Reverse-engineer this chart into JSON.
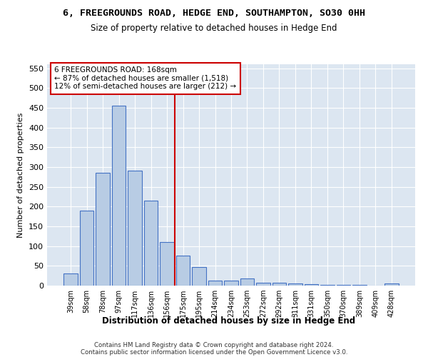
{
  "title": "6, FREEGROUNDS ROAD, HEDGE END, SOUTHAMPTON, SO30 0HH",
  "subtitle": "Size of property relative to detached houses in Hedge End",
  "xlabel": "Distribution of detached houses by size in Hedge End",
  "ylabel": "Number of detached properties",
  "categories": [
    "39sqm",
    "58sqm",
    "78sqm",
    "97sqm",
    "117sqm",
    "136sqm",
    "156sqm",
    "175sqm",
    "195sqm",
    "214sqm",
    "234sqm",
    "253sqm",
    "272sqm",
    "292sqm",
    "311sqm",
    "331sqm",
    "350sqm",
    "370sqm",
    "389sqm",
    "409sqm",
    "428sqm"
  ],
  "values": [
    30,
    190,
    285,
    455,
    290,
    215,
    110,
    75,
    47,
    12,
    12,
    18,
    8,
    7,
    5,
    4,
    2,
    1,
    1,
    0,
    5
  ],
  "bar_color": "#b8cce4",
  "bar_edge_color": "#4472c4",
  "vline_color": "#cc0000",
  "vline_x": 6.5,
  "annotation_text": "6 FREEGROUNDS ROAD: 168sqm\n← 87% of detached houses are smaller (1,518)\n12% of semi-detached houses are larger (212) →",
  "annotation_box_facecolor": "#ffffff",
  "annotation_box_edgecolor": "#cc0000",
  "ylim": [
    0,
    560
  ],
  "yticks": [
    0,
    50,
    100,
    150,
    200,
    250,
    300,
    350,
    400,
    450,
    500,
    550
  ],
  "background_color": "#dce6f1",
  "grid_color": "#ffffff",
  "footer_line1": "Contains HM Land Registry data © Crown copyright and database right 2024.",
  "footer_line2": "Contains public sector information licensed under the Open Government Licence v3.0."
}
